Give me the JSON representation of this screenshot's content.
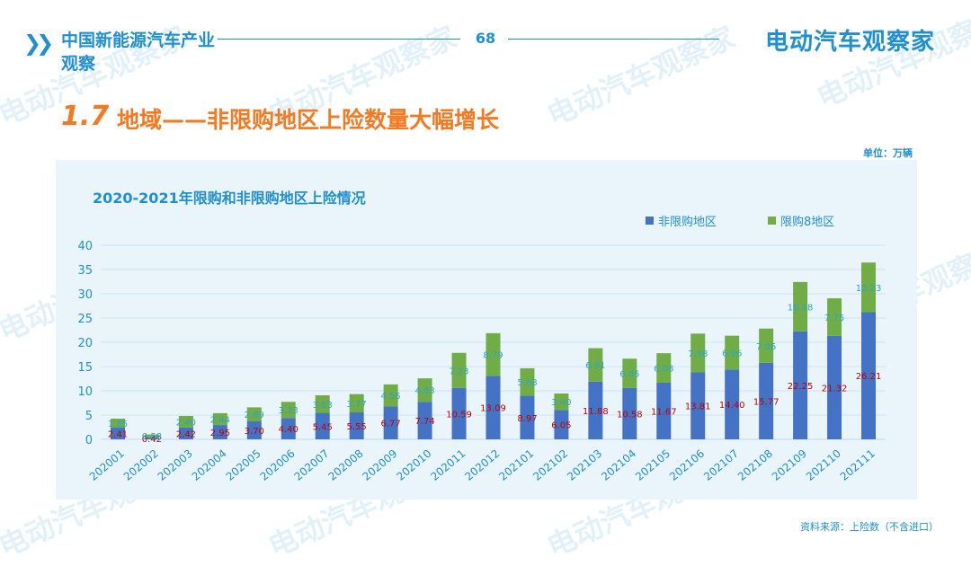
{
  "header": {
    "title": "中国新能源汽车产业观察",
    "page_number": "68",
    "brand": "电动汽车观察家"
  },
  "section": {
    "number": "1.7",
    "title": "地域——非限购地区上险数量大幅增长"
  },
  "unit": "单位：万辆",
  "source": "资料来源：上险数（不含进口）",
  "watermark": "电动汽车观察家",
  "colors": {
    "accent": "#1f8fd1",
    "orange": "#f47920",
    "series_non_restricted": "#4472c4",
    "series_restricted": "#70ad47",
    "label_red": "#c00000",
    "label_teal": "#2aa5c8"
  },
  "chart_data": {
    "type": "bar",
    "stacked": true,
    "title": "2020-2021年限购和非限购地区上险情况",
    "xlabel": "",
    "ylabel": "",
    "ylim": [
      0,
      40
    ],
    "yticks": [
      0,
      5,
      10,
      15,
      20,
      25,
      30,
      35,
      40
    ],
    "legend_position": "top-right",
    "categories": [
      "202001",
      "202002",
      "202003",
      "202004",
      "202005",
      "202006",
      "202007",
      "202008",
      "202009",
      "202010",
      "202011",
      "202012",
      "202101",
      "202102",
      "202103",
      "202104",
      "202105",
      "202106",
      "202107",
      "202108",
      "202109",
      "202110",
      "202111"
    ],
    "series": [
      {
        "name": "非限购地区",
        "color": "#4472c4",
        "values": [
          2.41,
          0.42,
          2.42,
          2.95,
          3.7,
          4.4,
          5.45,
          5.55,
          6.77,
          7.74,
          10.59,
          13.09,
          8.97,
          6.05,
          11.88,
          10.58,
          11.67,
          13.81,
          14.4,
          15.77,
          22.25,
          21.32,
          26.21
        ],
        "labels": [
          "2.41",
          "0.42",
          "2.42",
          "2.95",
          "3.70",
          "4.40",
          "5.45",
          "5.55",
          "6.77",
          "7.74",
          "10.59",
          "13.09",
          "8.97",
          "6.05",
          "11.88",
          "10.58",
          "11.67",
          "13.81",
          "14.40",
          "15.77",
          "22.25",
          "21.32",
          "26.21"
        ]
      },
      {
        "name": "限购8地区",
        "color": "#70ad47",
        "values": [
          1.85,
          0.58,
          2.4,
          2.44,
          2.89,
          3.33,
          3.63,
          3.77,
          4.55,
          4.83,
          7.23,
          8.79,
          5.68,
          3.4,
          6.91,
          6.05,
          6.08,
          7.98,
          6.96,
          7.06,
          10.18,
          7.75,
          10.23
        ],
        "labels": [
          "1.85",
          "0.58",
          "2.40",
          "2.44",
          "2.89",
          "3.33",
          "3.63",
          "3.77",
          "4.55",
          "4.83",
          "7.23",
          "8.79",
          "5.68",
          "3.40",
          "6.91",
          "6.05",
          "6.08",
          "7.98",
          "6.96",
          "7.06",
          "10.18",
          "7.75",
          "10.23"
        ]
      }
    ]
  }
}
